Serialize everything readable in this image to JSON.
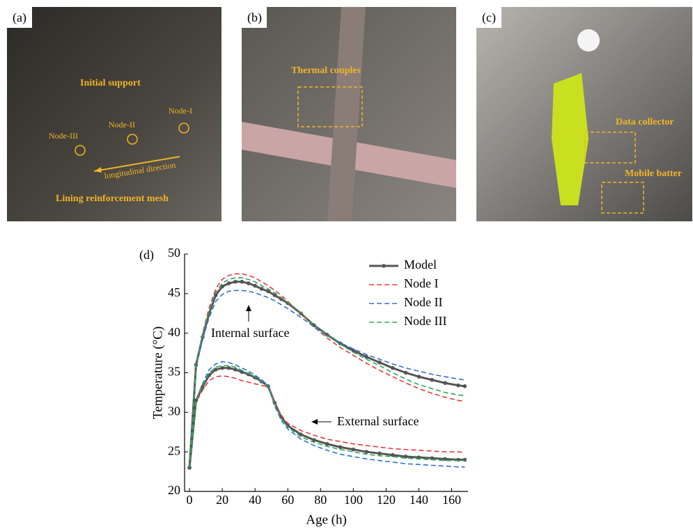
{
  "panels": [
    {
      "label": "(a)",
      "annotations": [
        "Initial support",
        "Node-I",
        "Node-II",
        "Node-III",
        "longitudinal direction",
        "Lining reinforcement mesh"
      ]
    },
    {
      "label": "(b)",
      "annotations": [
        "Thermal couples"
      ]
    },
    {
      "label": "(c)",
      "annotations": [
        "Data collector",
        "Mobile batter"
      ]
    }
  ],
  "chart_data": {
    "type": "line",
    "panel_label": "(d)",
    "x_label": "Age (h)",
    "y_label": "Temperature (°C)",
    "annotations": [
      "Internal surface",
      "External surface"
    ],
    "x": [
      0,
      4,
      8,
      12,
      16,
      20,
      24,
      28,
      32,
      36,
      40,
      44,
      48,
      52,
      56,
      60,
      68,
      76,
      84,
      92,
      100,
      108,
      116,
      124,
      132,
      140,
      148,
      156,
      164,
      168
    ],
    "xlim": [
      -3,
      170
    ],
    "xticks": [
      0,
      20,
      40,
      60,
      80,
      100,
      120,
      140,
      160
    ],
    "ylim": [
      20,
      50
    ],
    "yticks": [
      20,
      25,
      30,
      35,
      40,
      45,
      50
    ],
    "series": [
      {
        "name": "Model",
        "color": "#555555",
        "style": "solid-marker",
        "values": [
          23,
          36,
          39.5,
          42.5,
          44.8,
          45.9,
          46.3,
          46.5,
          46.5,
          46.3,
          46.0,
          45.6,
          45.3,
          44.8,
          44.3,
          43.8,
          42.5,
          41.0,
          39.8,
          38.7,
          37.8,
          37.0,
          36.3,
          35.6,
          35.0,
          34.5,
          34.1,
          33.7,
          33.4,
          33.3
        ],
        "external_values": [
          23,
          31.5,
          33.2,
          34.7,
          35.4,
          35.6,
          35.6,
          35.4,
          35.1,
          34.8,
          34.4,
          33.9,
          33.3,
          31.2,
          29.4,
          28.3,
          27.2,
          26.5,
          26.0,
          25.6,
          25.3,
          25.0,
          24.8,
          24.6,
          24.4,
          24.3,
          24.2,
          24.1,
          24.0,
          24.0
        ]
      },
      {
        "name": "Node I",
        "color": "#e8383a",
        "style": "dashed",
        "values": [
          23,
          36,
          40,
          43.2,
          45.6,
          46.8,
          47.3,
          47.5,
          47.5,
          47.3,
          47.0,
          46.5,
          46.0,
          45.4,
          44.8,
          44.0,
          42.5,
          40.8,
          39.4,
          38.2,
          37.2,
          36.2,
          35.3,
          34.5,
          33.7,
          33.0,
          32.4,
          31.9,
          31.5,
          31.4
        ],
        "external_values": [
          23,
          31.3,
          32.8,
          34.0,
          34.5,
          34.6,
          34.5,
          34.3,
          34.0,
          33.8,
          33.6,
          33.4,
          33.2,
          31.3,
          29.6,
          28.6,
          27.7,
          27.1,
          26.6,
          26.3,
          26.0,
          25.8,
          25.6,
          25.4,
          25.3,
          25.2,
          25.1,
          25.0,
          25.0,
          24.9
        ]
      },
      {
        "name": "Node II",
        "color": "#2f6fd6",
        "style": "dashed",
        "values": [
          23,
          35.8,
          39.2,
          42,
          44,
          44.9,
          45.3,
          45.4,
          45.4,
          45.3,
          45.1,
          44.8,
          44.5,
          44.1,
          43.6,
          43.1,
          42.0,
          40.8,
          39.7,
          38.8,
          38.0,
          37.3,
          36.7,
          36.1,
          35.6,
          35.2,
          34.8,
          34.5,
          34.2,
          34.1
        ],
        "external_values": [
          23,
          31.6,
          33.6,
          35.4,
          36.1,
          36.4,
          36.3,
          36.0,
          35.6,
          35.2,
          34.7,
          34.1,
          33.4,
          30.8,
          29.0,
          27.9,
          26.6,
          25.8,
          25.2,
          24.7,
          24.4,
          24.1,
          23.9,
          23.7,
          23.5,
          23.4,
          23.3,
          23.2,
          23.1,
          23.1
        ]
      },
      {
        "name": "Node III",
        "color": "#2fa85a",
        "style": "dashed",
        "values": [
          23,
          36,
          39.8,
          42.8,
          45.2,
          46.3,
          46.8,
          47.0,
          47.0,
          46.8,
          46.5,
          46.0,
          45.6,
          45.1,
          44.5,
          43.9,
          42.6,
          41.0,
          39.7,
          38.6,
          37.6,
          36.7,
          35.9,
          35.0,
          34.2,
          33.5,
          33.0,
          32.5,
          32.2,
          32.1
        ],
        "external_values": [
          23,
          31.5,
          33.4,
          35.0,
          35.7,
          35.9,
          35.9,
          35.7,
          35.3,
          34.9,
          34.5,
          33.9,
          33.3,
          31.0,
          29.2,
          28.1,
          26.9,
          26.2,
          25.7,
          25.3,
          25.0,
          24.7,
          24.5,
          24.4,
          24.2,
          24.1,
          24.0,
          23.9,
          23.9,
          23.9
        ]
      }
    ]
  }
}
